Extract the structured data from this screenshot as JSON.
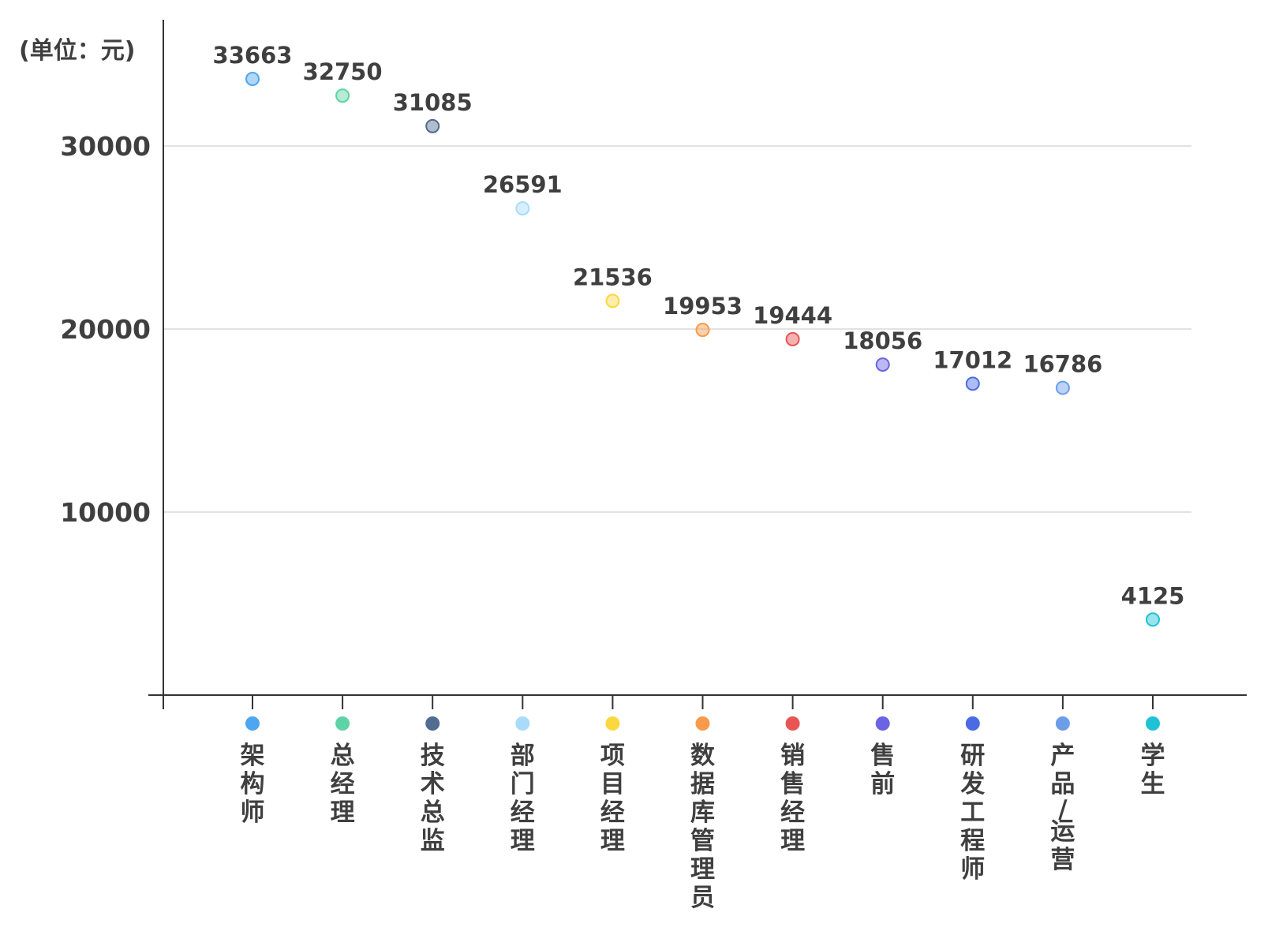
{
  "chart_data": {
    "type": "scatter",
    "unit_label": "(单位：元)",
    "categories": [
      "架构师",
      "总经理",
      "技术总监",
      "部门经理",
      "项目经理",
      "数据库管理员",
      "销售经理",
      "售前",
      "研发工程师",
      "产品/运营",
      "学生"
    ],
    "values": [
      33663,
      32750,
      31085,
      26591,
      21536,
      19953,
      19444,
      18056,
      17012,
      16786,
      4125
    ],
    "colors": [
      "#4ea6f0",
      "#5ed3a5",
      "#516b91",
      "#a8dcfa",
      "#fbd83f",
      "#f79a4a",
      "#e95454",
      "#6b63e3",
      "#4a6be3",
      "#6c9de8",
      "#1fc2d4"
    ],
    "yticks": [
      10000,
      20000,
      30000
    ],
    "ylim": [
      0,
      36000
    ],
    "grid": true,
    "legend": "bottom"
  }
}
